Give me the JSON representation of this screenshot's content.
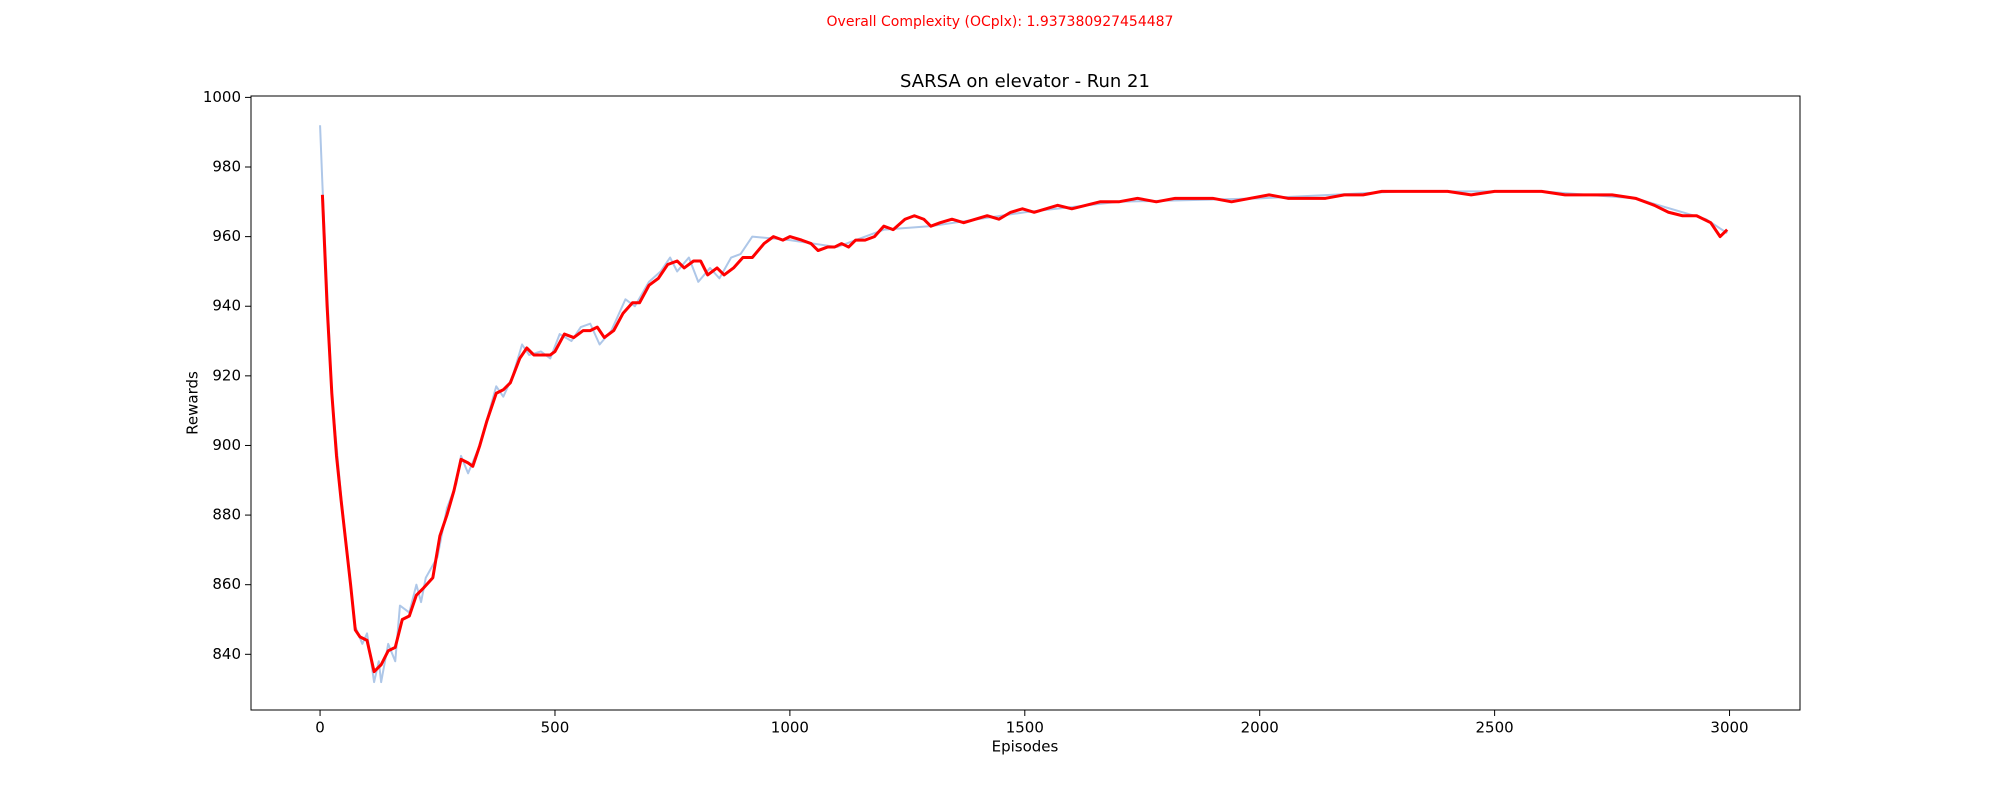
{
  "chart_data": {
    "type": "line",
    "suptitle": "Overall Complexity (OCplx): 1.937380927454487",
    "title": "SARSA on elevator - Run 21",
    "x_label": "Episodes",
    "y_label": "Rewards",
    "xlim": [
      -147,
      3150
    ],
    "ylim": [
      824,
      1000.4
    ],
    "xticks": [
      0,
      500,
      1000,
      1500,
      2000,
      2500,
      3000
    ],
    "yticks": [
      840,
      860,
      880,
      900,
      920,
      940,
      960,
      980,
      1000
    ],
    "series": [
      {
        "color": "#aec7e8",
        "width": 2,
        "x": [
          0,
          5,
          15,
          25,
          45,
          75,
          90,
          100,
          115,
          125,
          130,
          145,
          160,
          170,
          190,
          205,
          215,
          225,
          250,
          270,
          290,
          300,
          315,
          340,
          375,
          390,
          410,
          430,
          445,
          470,
          490,
          510,
          535,
          555,
          575,
          595,
          620,
          650,
          670,
          700,
          725,
          745,
          760,
          785,
          805,
          830,
          850,
          875,
          895,
          920,
          1000,
          1100,
          1200,
          1300,
          1500,
          1700,
          2000,
          2300,
          2600,
          2800,
          2950,
          2995
        ],
        "values": [
          992,
          975,
          945,
          915,
          885,
          848,
          843,
          846,
          832,
          838,
          832,
          843,
          838,
          854,
          852,
          860,
          855,
          862,
          868,
          882,
          889,
          897,
          892,
          900,
          917,
          914,
          920,
          929,
          926,
          927,
          925,
          932,
          930,
          934,
          935,
          929,
          933,
          942,
          940,
          947,
          950,
          954,
          950,
          954,
          947,
          951,
          948,
          954,
          955,
          960,
          959,
          957,
          962,
          963,
          967,
          970,
          971,
          973,
          973,
          971,
          965,
          961
        ]
      },
      {
        "color": "#ff0000",
        "width": 3,
        "x": [
          5,
          15,
          25,
          35,
          45,
          55,
          65,
          75,
          85,
          100,
          115,
          130,
          145,
          160,
          175,
          190,
          205,
          220,
          240,
          255,
          270,
          285,
          300,
          315,
          325,
          340,
          355,
          375,
          390,
          405,
          425,
          440,
          455,
          470,
          490,
          500,
          520,
          540,
          560,
          575,
          590,
          605,
          625,
          645,
          665,
          680,
          700,
          720,
          740,
          760,
          775,
          795,
          810,
          825,
          845,
          860,
          880,
          900,
          920,
          945,
          965,
          985,
          1000,
          1025,
          1045,
          1060,
          1080,
          1095,
          1110,
          1125,
          1140,
          1160,
          1180,
          1200,
          1220,
          1245,
          1265,
          1285,
          1300,
          1320,
          1345,
          1370,
          1395,
          1420,
          1445,
          1470,
          1495,
          1520,
          1545,
          1570,
          1600,
          1630,
          1660,
          1700,
          1740,
          1780,
          1820,
          1860,
          1900,
          1940,
          1980,
          2020,
          2060,
          2100,
          2140,
          2180,
          2220,
          2260,
          2300,
          2350,
          2400,
          2450,
          2500,
          2550,
          2600,
          2650,
          2700,
          2750,
          2800,
          2840,
          2870,
          2900,
          2930,
          2960,
          2980,
          2995
        ],
        "values": [
          972,
          940,
          915,
          897,
          884,
          872,
          860,
          847,
          845,
          844,
          835,
          837,
          841,
          842,
          850,
          851,
          857,
          859,
          862,
          874,
          880,
          887,
          896,
          895,
          894,
          900,
          907,
          915,
          916,
          918,
          925,
          928,
          926,
          926,
          926,
          927,
          932,
          931,
          933,
          933,
          934,
          931,
          933,
          938,
          941,
          941,
          946,
          948,
          952,
          953,
          951,
          953,
          953,
          949,
          951,
          949,
          951,
          954,
          954,
          958,
          960,
          959,
          960,
          959,
          958,
          956,
          957,
          957,
          958,
          957,
          959,
          959,
          960,
          963,
          962,
          965,
          966,
          965,
          963,
          964,
          965,
          964,
          965,
          966,
          965,
          967,
          968,
          967,
          968,
          969,
          968,
          969,
          970,
          970,
          971,
          970,
          971,
          971,
          971,
          970,
          971,
          972,
          971,
          971,
          971,
          972,
          972,
          973,
          973,
          973,
          973,
          972,
          973,
          973,
          973,
          972,
          972,
          972,
          971,
          969,
          967,
          966,
          966,
          964,
          960,
          962
        ]
      }
    ]
  }
}
